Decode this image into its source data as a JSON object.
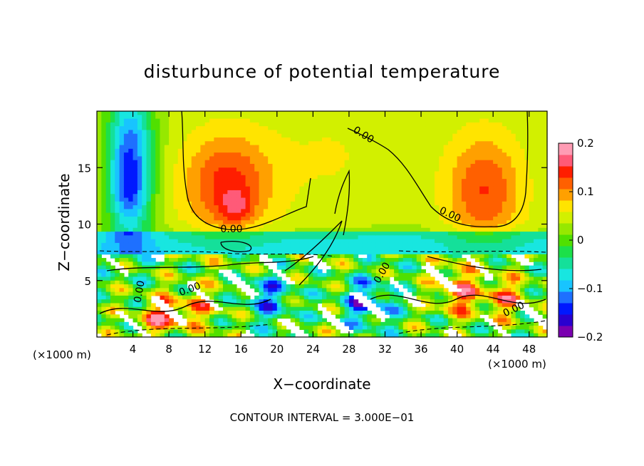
{
  "chart_data": {
    "type": "heatmap",
    "title": "disturbunce of potential temperature",
    "xlabel": "X−coordinate",
    "ylabel": "Z−coordinate",
    "x_unit_label": "(×1000 m)",
    "x_ticks": [
      4,
      8,
      12,
      16,
      20,
      24,
      28,
      32,
      36,
      40,
      44,
      48
    ],
    "y_ticks": [
      5,
      10,
      15
    ],
    "xlim": [
      0,
      50
    ],
    "ylim": [
      0,
      20
    ],
    "colorbar": {
      "range": [
        -0.2,
        0.2
      ],
      "tick_values": [
        0.2,
        0.1,
        0,
        -0.1,
        -0.2
      ],
      "tick_labels": [
        "0.2",
        "0.1",
        "0",
        "−0.1",
        "−0.2"
      ],
      "colors": [
        "#7a00b0",
        "#2a00d0",
        "#0018ff",
        "#1e70ff",
        "#18c4ff",
        "#18e6e0",
        "#14e09a",
        "#1ce04a",
        "#50e000",
        "#96e800",
        "#d2f000",
        "#ffe400",
        "#ffa000",
        "#ff6000",
        "#ff1e00",
        "#ff5a78",
        "#ff9cb4"
      ]
    },
    "contour_labels": [
      "0.00",
      "0.00",
      "0.00",
      "0.00",
      "0.00",
      "0.00",
      "0.00"
    ],
    "contour_interval_text": "CONTOUR INTERVAL = 3.000E−01",
    "blobs": [
      {
        "x": 3.7,
        "z": 15.8,
        "sx": 1.8,
        "sz": 4.5,
        "amp": -0.17
      },
      {
        "x": 3.5,
        "z": 12.0,
        "sx": 1.5,
        "sz": 2.0,
        "amp": -0.05
      },
      {
        "x": 14.5,
        "z": 13.5,
        "sx": 3.5,
        "sz": 3.2,
        "amp": 0.1
      },
      {
        "x": 15.5,
        "z": 11.5,
        "sx": 1.2,
        "sz": 1.0,
        "amp": 0.05
      },
      {
        "x": 43.0,
        "z": 13.0,
        "sx": 3.0,
        "sz": 3.5,
        "amp": 0.09
      },
      {
        "x": 26.0,
        "z": 16.0,
        "sx": 5.0,
        "sz": 4.0,
        "amp": 0.02
      },
      {
        "x": 40.0,
        "z": 4.0,
        "sx": 1.5,
        "sz": 1.5,
        "amp": 0.12
      },
      {
        "x": 45.0,
        "z": 3.5,
        "sx": 2.0,
        "sz": 1.2,
        "amp": 0.1
      },
      {
        "x": 10.0,
        "z": 2.5,
        "sx": 3.0,
        "sz": 1.2,
        "amp": 0.08
      },
      {
        "x": 19.0,
        "z": 3.5,
        "sx": 2.0,
        "sz": 1.5,
        "amp": -0.1
      },
      {
        "x": 30.0,
        "z": 3.0,
        "sx": 2.0,
        "sz": 1.5,
        "amp": -0.12
      },
      {
        "x": 7.0,
        "z": 1.5,
        "sx": 1.5,
        "sz": 1.0,
        "amp": 0.1
      }
    ]
  }
}
